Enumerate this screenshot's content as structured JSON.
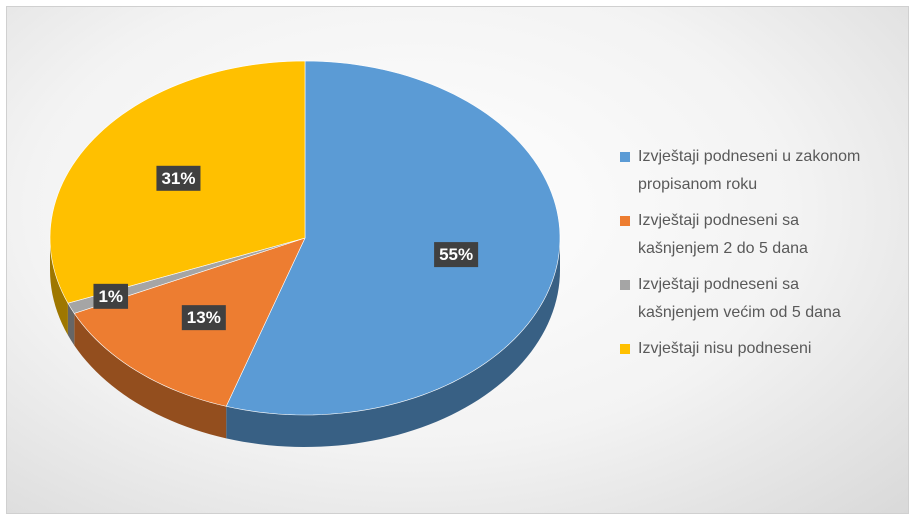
{
  "chart_data": {
    "type": "pie",
    "categories": [
      "Izvještaji podneseni u zakonom propisanom roku",
      "Izvještaji podneseni sa kašnjenjem 2 do 5 dana",
      "Izvještaji podneseni sa kašnjenjem većim od 5 dana",
      "Izvještaji nisu podneseni"
    ],
    "values": [
      55,
      13,
      1,
      31
    ],
    "value_labels": [
      "55%",
      "13%",
      "1%",
      "31%"
    ],
    "colors": [
      "#5b9bd5",
      "#ed7d31",
      "#a5a5a5",
      "#ffc000"
    ],
    "legend": "right"
  }
}
